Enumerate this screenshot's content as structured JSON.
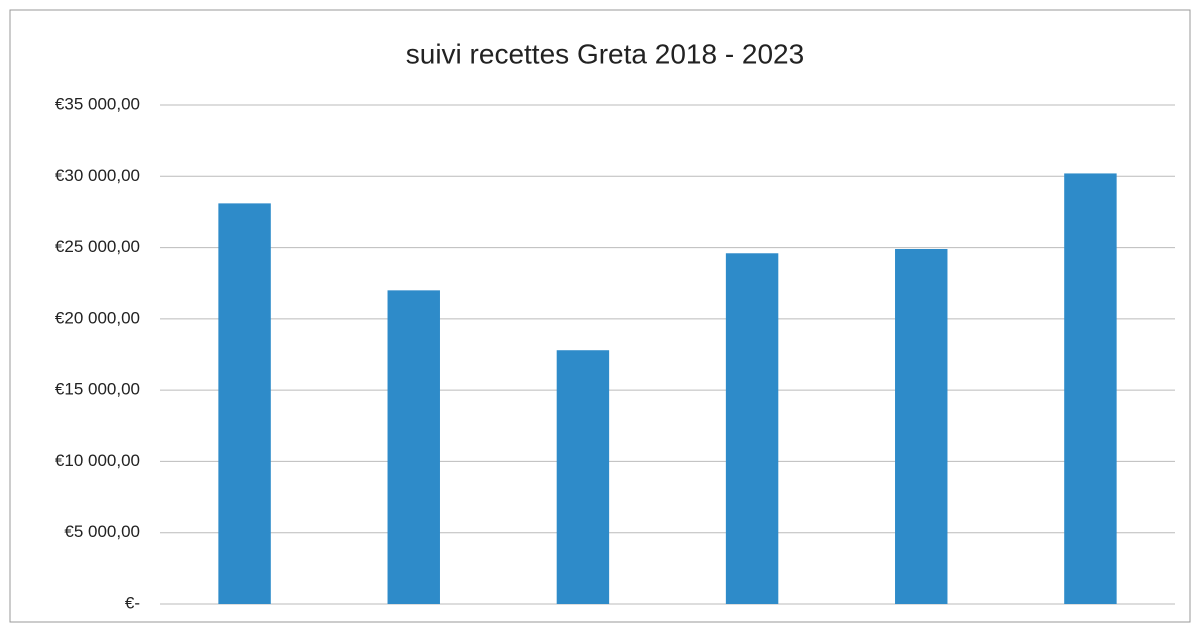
{
  "chart_data": {
    "type": "bar",
    "title": "suivi recettes Greta 2018 - 2023",
    "categories": [
      null,
      null,
      null,
      null,
      null,
      null
    ],
    "values": [
      28100,
      22000,
      17800,
      24600,
      24900,
      30200
    ],
    "color": "#2e8bc9",
    "ylim": [
      0,
      35000
    ],
    "yticks": [
      {
        "value": 0,
        "label": "€-"
      },
      {
        "value": 5000,
        "label": "€5 000,00"
      },
      {
        "value": 10000,
        "label": "€10 000,00"
      },
      {
        "value": 15000,
        "label": "€15 000,00"
      },
      {
        "value": 20000,
        "label": "€20 000,00"
      },
      {
        "value": 25000,
        "label": "€25 000,00"
      },
      {
        "value": 30000,
        "label": "€30 000,00"
      },
      {
        "value": 35000,
        "label": "€35 000,00"
      }
    ],
    "grid": true
  }
}
